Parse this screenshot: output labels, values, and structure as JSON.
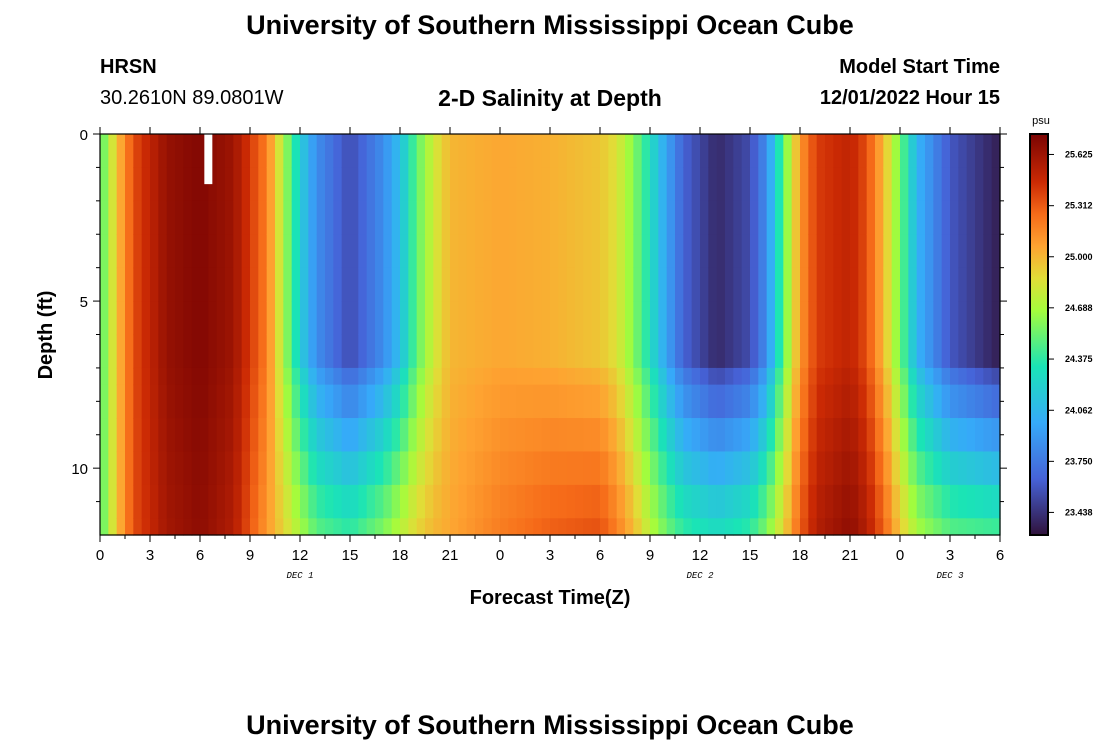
{
  "header": {
    "title": "University of Southern Mississippi Ocean Cube",
    "station": "HRSN",
    "coords": "30.2610N  89.0801W",
    "plot_title": "2-D Salinity at Depth",
    "model_label": "Model Start Time",
    "model_time": "12/01/2022 Hour 15"
  },
  "footer": {
    "title": "University of Southern Mississippi Ocean Cube"
  },
  "chart_data": {
    "type": "heatmap",
    "title": "2-D Salinity at Depth",
    "xlabel": "Forecast Time(Z)",
    "ylabel": "Depth (ft)",
    "x_ticks": [
      "0",
      "3",
      "6",
      "9",
      "12",
      "15",
      "18",
      "21",
      "0",
      "3",
      "6",
      "9",
      "12",
      "15",
      "18",
      "21",
      "0",
      "3",
      "6"
    ],
    "day_labels": [
      "DEC 1",
      "DEC 2",
      "DEC 3"
    ],
    "y_ticks": [
      "0",
      "5",
      "10"
    ],
    "ylim": [
      0,
      12
    ],
    "colorbar": {
      "unit": "psu",
      "ticks": [
        "25.625",
        "25.312",
        "25.000",
        "24.688",
        "24.375",
        "24.062",
        "23.750",
        "23.438"
      ],
      "range": [
        23.3,
        25.75
      ]
    },
    "x_hours": [
      0,
      54
    ],
    "depth_ft": [
      0,
      12
    ],
    "salinity_keyframes": [
      {
        "hour": 0,
        "surface": 24.45,
        "bottom": 24.45
      },
      {
        "hour": 1,
        "surface": 24.95,
        "bottom": 24.95
      },
      {
        "hour": 2,
        "surface": 25.35,
        "bottom": 25.35
      },
      {
        "hour": 4,
        "surface": 25.65,
        "bottom": 25.6
      },
      {
        "hour": 6,
        "surface": 25.72,
        "bottom": 25.68
      },
      {
        "hour": 8,
        "surface": 25.62,
        "bottom": 25.55
      },
      {
        "hour": 10,
        "surface": 25.2,
        "bottom": 25.1
      },
      {
        "hour": 11,
        "surface": 24.7,
        "bottom": 24.9
      },
      {
        "hour": 12,
        "surface": 24.2,
        "bottom": 24.7
      },
      {
        "hour": 13,
        "surface": 23.85,
        "bottom": 24.5
      },
      {
        "hour": 15,
        "surface": 23.55,
        "bottom": 24.4
      },
      {
        "hour": 17,
        "surface": 23.85,
        "bottom": 24.6
      },
      {
        "hour": 18,
        "surface": 24.1,
        "bottom": 24.75
      },
      {
        "hour": 19,
        "surface": 24.5,
        "bottom": 24.9
      },
      {
        "hour": 20,
        "surface": 24.8,
        "bottom": 25.0
      },
      {
        "hour": 21,
        "surface": 25.0,
        "bottom": 25.05
      },
      {
        "hour": 24,
        "surface": 25.05,
        "bottom": 25.2
      },
      {
        "hour": 27,
        "surface": 25.02,
        "bottom": 25.3
      },
      {
        "hour": 30,
        "surface": 24.95,
        "bottom": 25.35
      },
      {
        "hour": 31,
        "surface": 24.85,
        "bottom": 25.2
      },
      {
        "hour": 32,
        "surface": 24.6,
        "bottom": 25.0
      },
      {
        "hour": 33,
        "surface": 24.3,
        "bottom": 24.75
      },
      {
        "hour": 34,
        "surface": 23.95,
        "bottom": 24.55
      },
      {
        "hour": 35,
        "surface": 23.65,
        "bottom": 24.4
      },
      {
        "hour": 37,
        "surface": 23.4,
        "bottom": 24.3
      },
      {
        "hour": 39,
        "surface": 23.55,
        "bottom": 24.4
      },
      {
        "hour": 40,
        "surface": 23.85,
        "bottom": 24.6
      },
      {
        "hour": 41,
        "surface": 24.5,
        "bottom": 24.9
      },
      {
        "hour": 42,
        "surface": 25.1,
        "bottom": 25.3
      },
      {
        "hour": 43,
        "surface": 25.4,
        "bottom": 25.55
      },
      {
        "hour": 45,
        "surface": 25.5,
        "bottom": 25.68
      },
      {
        "hour": 46,
        "surface": 25.35,
        "bottom": 25.55
      },
      {
        "hour": 47,
        "surface": 25.0,
        "bottom": 25.3
      },
      {
        "hour": 48,
        "surface": 24.55,
        "bottom": 24.95
      },
      {
        "hour": 49,
        "surface": 24.05,
        "bottom": 24.7
      },
      {
        "hour": 51,
        "surface": 23.6,
        "bottom": 24.5
      },
      {
        "hour": 54,
        "surface": 23.35,
        "bottom": 24.45
      }
    ],
    "missing_data_marker": {
      "hour": 6.5,
      "depth_top": 0,
      "depth_bottom": 1.5
    },
    "grid": false,
    "legend": "colorbar-right"
  }
}
